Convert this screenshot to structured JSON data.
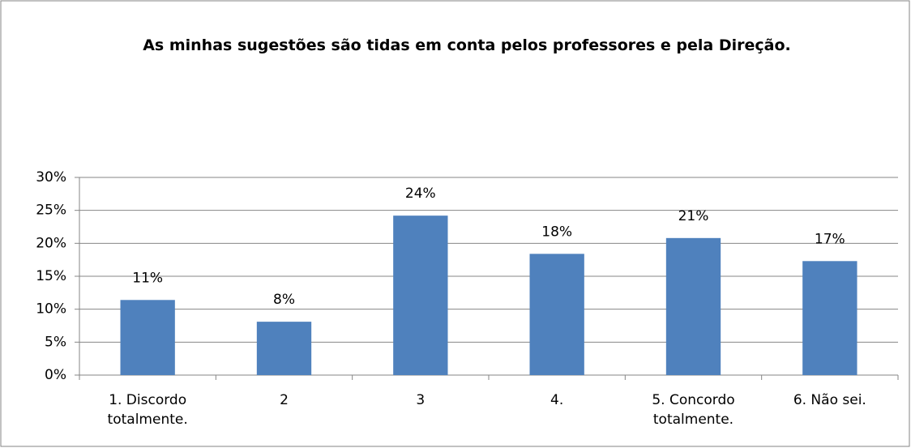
{
  "chart_data": {
    "type": "bar",
    "title": "As minhas sugestões são tidas em conta pelos professores e pela Direção.",
    "categories": [
      "1. Discordo totalmente.",
      "2",
      "3",
      "4.",
      "5. Concordo totalmente.",
      "6. Não sei."
    ],
    "values": [
      11.4,
      8.1,
      24.2,
      18.4,
      20.8,
      17.3
    ],
    "value_labels": [
      "11%",
      "8%",
      "24%",
      "18%",
      "21%",
      "17%"
    ],
    "color": "#4f81bd",
    "ylim": [
      0,
      30
    ],
    "yticks": [
      {
        "value": 0,
        "label": "0%"
      },
      {
        "value": 5,
        "label": "5%"
      },
      {
        "value": 10,
        "label": "10%"
      },
      {
        "value": 15,
        "label": "15%"
      },
      {
        "value": 20,
        "label": "20%"
      },
      {
        "value": 25,
        "label": "25%"
      },
      {
        "value": 30,
        "label": "30%"
      }
    ],
    "grid": true
  }
}
